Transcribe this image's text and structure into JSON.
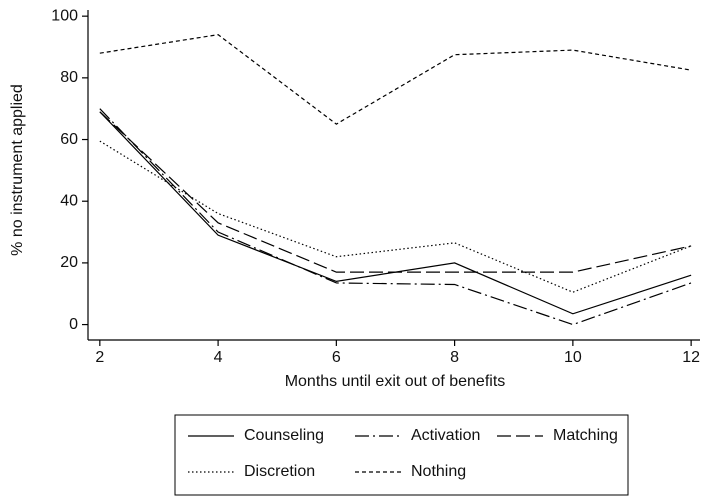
{
  "chart_data": {
    "type": "line",
    "x_label": "Months until exit out of benefits",
    "y_label": "% no instrument applied",
    "x": [
      2,
      4,
      6,
      8,
      10,
      12
    ],
    "xlim": [
      1.8,
      12.15
    ],
    "xticks": [
      2,
      4,
      6,
      8,
      10,
      12
    ],
    "ylim": [
      -5,
      102
    ],
    "yticks": [
      0,
      20,
      40,
      60,
      80,
      100
    ],
    "grid": false,
    "series": [
      {
        "name": "Counseling",
        "color": "#000000",
        "dash": "solid",
        "values": [
          69,
          29,
          14,
          20,
          3.5,
          16
        ]
      },
      {
        "name": "Activation",
        "color": "#000000",
        "dash": "longdashdot",
        "values": [
          70,
          30,
          13.5,
          13,
          0,
          13.5
        ]
      },
      {
        "name": "Matching",
        "color": "#000000",
        "dash": "longdash",
        "values": [
          69,
          33,
          17,
          17,
          17,
          25.5
        ]
      },
      {
        "name": "Discretion",
        "color": "#000000",
        "dash": "dot",
        "values": [
          59.5,
          36,
          22,
          26.5,
          10.5,
          25.5
        ]
      },
      {
        "name": "Nothing",
        "color": "#000000",
        "dash": "shortdash",
        "values": [
          88,
          94,
          65,
          87.5,
          89,
          82.5
        ]
      }
    ]
  }
}
